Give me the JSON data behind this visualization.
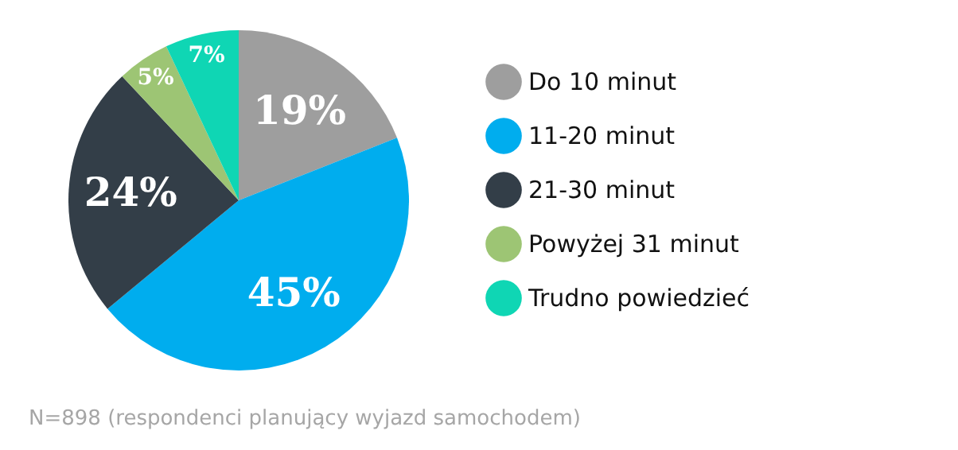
{
  "chart_data": {
    "type": "pie",
    "categories": [
      "Do 10 minut",
      "11-20 minut",
      "21-30 minut",
      "Powyżej 31 minut",
      "Trudno powiedzieć"
    ],
    "values": [
      19,
      45,
      24,
      5,
      7
    ],
    "colors": [
      "#9e9e9e",
      "#00adee",
      "#333e48",
      "#9dc574",
      "#0fd6b4"
    ],
    "value_labels": [
      "19%",
      "45%",
      "24%",
      "5%",
      "7%"
    ],
    "legend": "right",
    "annotations": [
      "N=898 (respondenci planujący wyjazd samochodem)"
    ]
  }
}
